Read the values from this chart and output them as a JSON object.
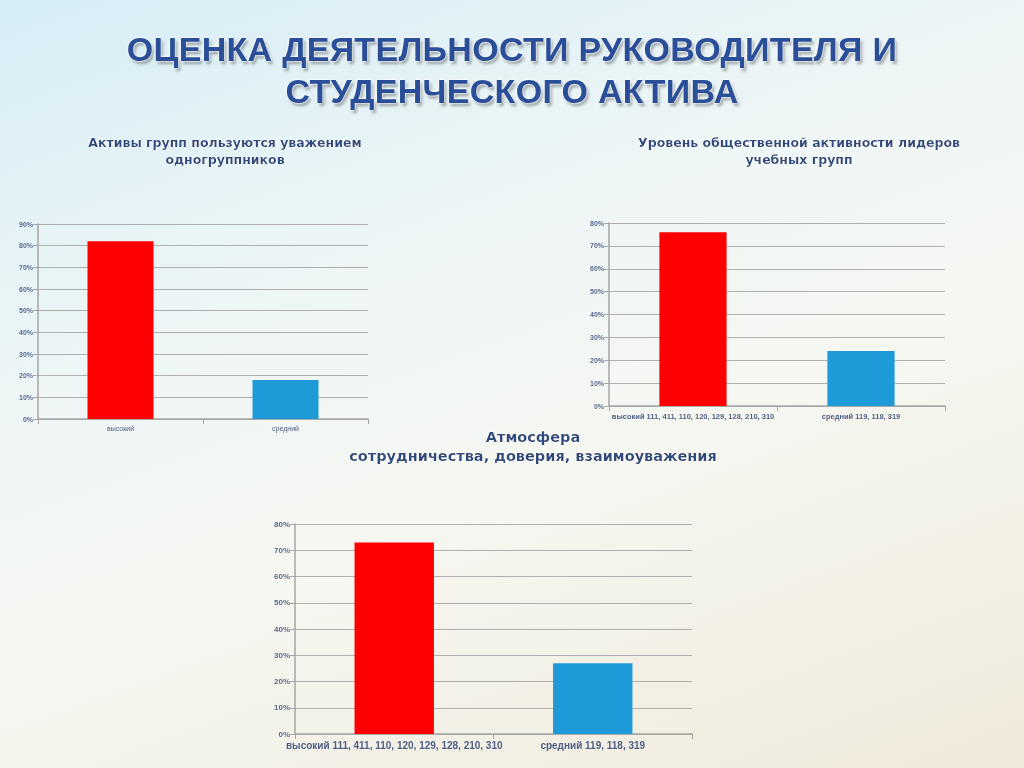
{
  "chart_data": [
    {
      "type": "other",
      "title": "ОЦЕНКА ДЕЯТЕЛЬНОСТИ РУКОВОДИТЕЛЯ И\nСТУДЕНЧЕСКОГО АКТИВА"
    },
    {
      "type": "bar",
      "title": "Активы групп пользуются уважением\nодногруппников",
      "categories": [
        "высокий",
        "средний"
      ],
      "values": [
        82,
        18
      ],
      "colors": [
        "#ff0000",
        "#1e9ad8"
      ],
      "ylim": [
        0,
        90
      ],
      "yticks": [
        {
          "value": 0,
          "label": "0%"
        },
        {
          "value": 10,
          "label": "10%"
        },
        {
          "value": 20,
          "label": "20%"
        },
        {
          "value": 30,
          "label": "30%"
        },
        {
          "value": 40,
          "label": "40%"
        },
        {
          "value": 50,
          "label": "50%"
        },
        {
          "value": 60,
          "label": "60%"
        },
        {
          "value": 70,
          "label": "70%"
        },
        {
          "value": 80,
          "label": "80%"
        },
        {
          "value": 90,
          "label": "90%"
        }
      ],
      "grid": "y"
    },
    {
      "type": "bar",
      "title": "Уровень общественной активности лидеров\nучебных групп",
      "categories": [
        "высокий 111, 411, 110, 120, 129, 128, 210, 310",
        "средний 119, 118, 319"
      ],
      "values": [
        76,
        24
      ],
      "colors": [
        "#ff0000",
        "#1e9ad8"
      ],
      "ylim": [
        0,
        80
      ],
      "yticks": [
        {
          "value": 0,
          "label": "0%"
        },
        {
          "value": 10,
          "label": "10%"
        },
        {
          "value": 20,
          "label": "20%"
        },
        {
          "value": 30,
          "label": "30%"
        },
        {
          "value": 40,
          "label": "40%"
        },
        {
          "value": 50,
          "label": "50%"
        },
        {
          "value": 60,
          "label": "60%"
        },
        {
          "value": 70,
          "label": "70%"
        },
        {
          "value": 80,
          "label": "80%"
        }
      ],
      "grid": "y"
    },
    {
      "type": "bar",
      "title": "Атмосфера\nсотрудничества, доверия, взаимоуважения",
      "categories": [
        "высокий 111, 411, 110, 120, 129, 128, 210, 310",
        "средний 119, 118, 319"
      ],
      "values": [
        73,
        27
      ],
      "colors": [
        "#ff0000",
        "#1e9ad8"
      ],
      "ylim": [
        0,
        80
      ],
      "yticks": [
        {
          "value": 0,
          "label": "0%"
        },
        {
          "value": 10,
          "label": "10%"
        },
        {
          "value": 20,
          "label": "20%"
        },
        {
          "value": 30,
          "label": "30%"
        },
        {
          "value": 40,
          "label": "40%"
        },
        {
          "value": 50,
          "label": "50%"
        },
        {
          "value": 60,
          "label": "60%"
        },
        {
          "value": 70,
          "label": "70%"
        },
        {
          "value": 80,
          "label": "80%"
        }
      ],
      "grid": "y"
    }
  ]
}
